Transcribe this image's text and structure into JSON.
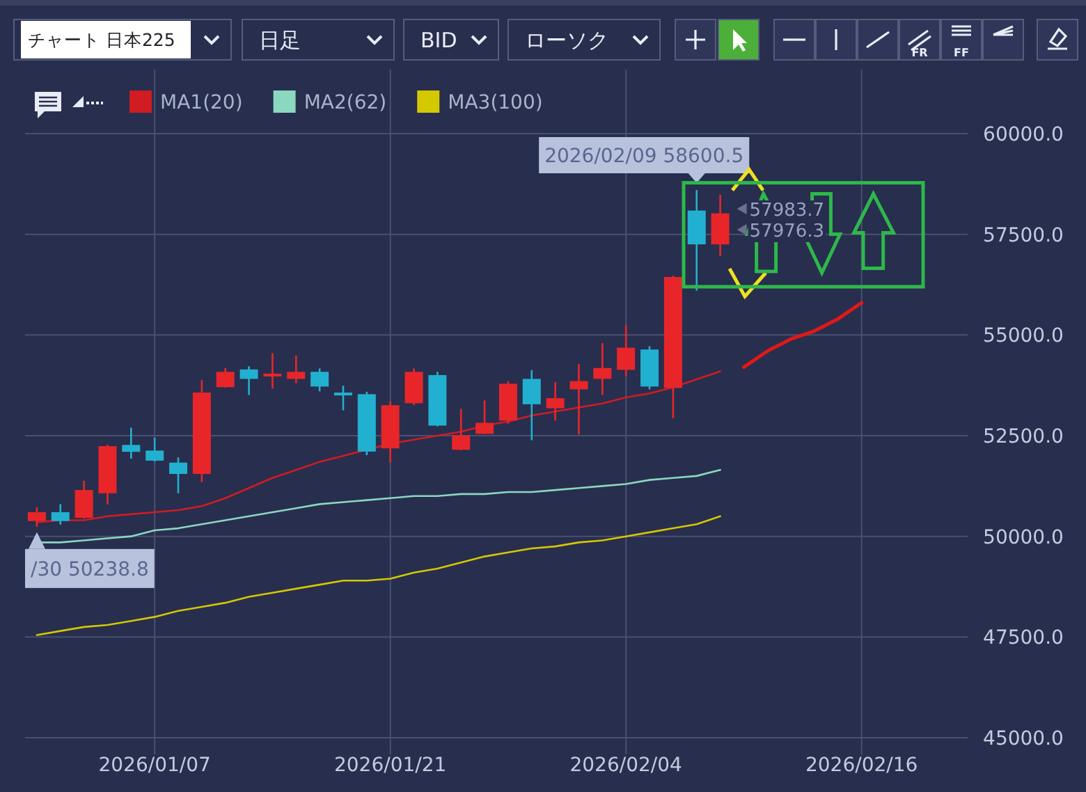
{
  "chart_data": {
    "type": "candlestick",
    "title": "チャート 日本225",
    "categories": [
      null,
      null,
      null,
      null,
      null,
      "2026/01/07",
      null,
      null,
      null,
      null,
      null,
      null,
      null,
      null,
      null,
      "2026/01/21",
      null,
      null,
      null,
      null,
      null,
      null,
      null,
      null,
      null,
      "2026/02/04",
      null,
      null,
      null,
      null,
      null,
      null,
      null,
      null,
      null,
      "2026/02/16",
      null,
      null,
      null,
      null
    ],
    "ohlc": [
      [
        50380,
        50720,
        50238.8,
        50600
      ],
      [
        50600,
        50800,
        50290,
        50380
      ],
      [
        50460,
        51380,
        50440,
        51150
      ],
      [
        51070,
        52280,
        50790,
        52240
      ],
      [
        52270,
        52700,
        51930,
        52100
      ],
      [
        52130,
        52450,
        51860,
        51880
      ],
      [
        51830,
        51960,
        51070,
        51550
      ],
      [
        51550,
        53880,
        51350,
        53570
      ],
      [
        53705,
        54180,
        53690,
        54085
      ],
      [
        54145,
        54225,
        53510,
        53910
      ],
      [
        53970,
        54550,
        53670,
        54040
      ],
      [
        53910,
        54490,
        53800,
        54085
      ],
      [
        54085,
        54170,
        53600,
        53720
      ],
      [
        53570,
        53740,
        53130,
        53500
      ],
      [
        53530,
        53590,
        52015,
        52105
      ],
      [
        52185,
        53350,
        51840,
        53255
      ],
      [
        53305,
        54170,
        53255,
        54085
      ],
      [
        54005,
        54085,
        52730,
        52750
      ],
      [
        52150,
        53165,
        52140,
        52510
      ],
      [
        52545,
        53375,
        52540,
        52820
      ],
      [
        52875,
        53855,
        52800,
        53790
      ],
      [
        53910,
        54130,
        52385,
        53280
      ],
      [
        53180,
        53830,
        52875,
        53430
      ],
      [
        53650,
        54280,
        52530,
        53855
      ],
      [
        53910,
        54800,
        53510,
        54180
      ],
      [
        54135,
        55240,
        53970,
        54685
      ],
      [
        54640,
        54720,
        53650,
        53720
      ],
      [
        53685,
        56470,
        52935,
        56440
      ],
      [
        58090,
        58600.5,
        56100,
        57250
      ],
      [
        57250,
        58485,
        56965,
        58020
      ],
      null,
      null,
      null,
      null,
      null,
      null,
      null,
      null,
      null,
      null
    ],
    "colors": [
      "#e8262a",
      "#22b0d0",
      "#e8262a",
      "#e8262a",
      "#22b0d0",
      "#22b0d0",
      "#22b0d0",
      "#e8262a",
      "#e8262a",
      "#22b0d0",
      "#e8262a",
      "#e8262a",
      "#22b0d0",
      "#22b0d0",
      "#22b0d0",
      "#e8262a",
      "#e8262a",
      "#22b0d0",
      "#e8262a",
      "#e8262a",
      "#e8262a",
      "#22b0d0",
      "#e8262a",
      "#e8262a",
      "#e8262a",
      "#e8262a",
      "#22b0d0",
      "#e8262a",
      "#22b0d0",
      "#e8262a",
      null,
      null,
      null,
      null,
      null,
      null,
      null,
      null,
      null,
      null
    ],
    "series": [
      {
        "name": "MA1(20)",
        "type": "line",
        "color": "#d01c22",
        "values": [
          50350,
          50400,
          50400,
          50500,
          50550,
          50600,
          50650,
          50750,
          50950,
          51200,
          51450,
          51650,
          51850,
          52000,
          52150,
          52300,
          52400,
          52500,
          52600,
          52750,
          52850,
          53000,
          53100,
          53200,
          53300,
          53450,
          53550,
          53700,
          53900,
          54100,
          null,
          null,
          null,
          null,
          null,
          null,
          null,
          null,
          null,
          null
        ]
      },
      {
        "name": "MA2(62)",
        "type": "line",
        "color": "#8ad8c0",
        "values": [
          49850,
          49850,
          49900,
          49950,
          50000,
          50150,
          50200,
          50300,
          50400,
          50500,
          50600,
          50700,
          50800,
          50850,
          50900,
          50950,
          51000,
          51000,
          51050,
          51050,
          51100,
          51100,
          51150,
          51200,
          51250,
          51300,
          51400,
          51450,
          51500,
          51650,
          null,
          null,
          null,
          null,
          null,
          null,
          null,
          null,
          null,
          null
        ]
      },
      {
        "name": "MA3(100)",
        "type": "line",
        "color": "#d4c800",
        "values": [
          47550,
          47650,
          47750,
          47800,
          47900,
          48000,
          48150,
          48250,
          48350,
          48500,
          48600,
          48700,
          48800,
          48900,
          48900,
          48950,
          49100,
          49200,
          49350,
          49500,
          49600,
          49700,
          49750,
          49850,
          49900,
          50000,
          50100,
          50200,
          50300,
          50500,
          null,
          null,
          null,
          null,
          null,
          null,
          null,
          null,
          null,
          null
        ]
      },
      {
        "type": "line",
        "color": "#e01818",
        "values": [
          null,
          null,
          null,
          null,
          null,
          null,
          null,
          null,
          null,
          null,
          null,
          null,
          null,
          null,
          null,
          null,
          null,
          null,
          null,
          null,
          null,
          null,
          null,
          null,
          null,
          null,
          null,
          null,
          null,
          null,
          54200,
          54600,
          54900,
          55100,
          55400,
          55800,
          null,
          null,
          null,
          null
        ]
      }
    ],
    "ylim": [
      45000,
      60000
    ],
    "yticks": [
      {
        "value": 45000,
        "label": "45000.0"
      },
      {
        "value": 47500,
        "label": "47500.0"
      },
      {
        "value": 50000,
        "label": "50000.0"
      },
      {
        "value": 52500,
        "label": "52500.0"
      },
      {
        "value": 55000,
        "label": "55000.0"
      },
      {
        "value": 57500,
        "label": "57500.0"
      },
      {
        "value": 60000,
        "label": "60000.0"
      }
    ],
    "grid": true,
    "legend": "top left",
    "marker": "none",
    "annotations": [
      "/30 50238.8",
      "2026/02/09 58600.5",
      "57983.7",
      "57976.3",
      "日足",
      "BID",
      "ローソク",
      "FR",
      "FF"
    ]
  }
}
